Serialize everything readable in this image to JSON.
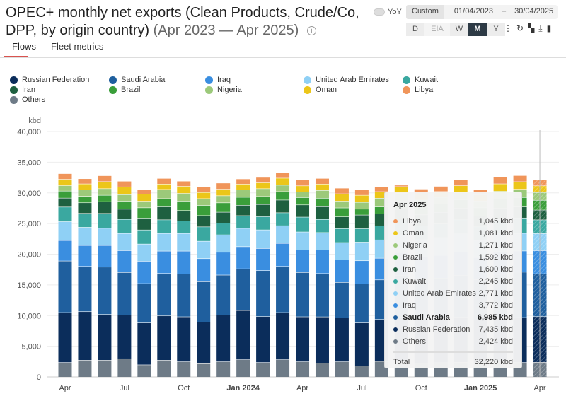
{
  "header": {
    "title": "OPEC+ monthly net exports (Clean Products, Crude/Co, DPP, by origin country)",
    "range": "(Apr 2023 — Apr 2025)",
    "info_icon": "info-icon",
    "yoy_label": "YoY",
    "custom_label": "Custom",
    "date_from": "01/04/2023",
    "date_sep": "–",
    "date_to": "30/04/2025",
    "periods": [
      "D",
      "EIA",
      "W",
      "M",
      "Y"
    ],
    "active_period": "M",
    "tools": [
      "more-icon",
      "refresh-icon",
      "qr-icon",
      "download-icon",
      "bookmark-icon"
    ]
  },
  "tabs": [
    {
      "label": "Flows",
      "active": true
    },
    {
      "label": "Fleet metrics",
      "active": false
    }
  ],
  "chart_data": {
    "type": "bar",
    "stacked": true,
    "ylabel": "kbd",
    "ylim": [
      0,
      40000
    ],
    "yticks": [
      "0",
      "5,000",
      "10,000",
      "15,000",
      "20,000",
      "25,000",
      "30,000",
      "35,000",
      "40,000"
    ],
    "grid": true,
    "legend_position": "top",
    "categories": [
      "Apr 2023",
      "May 2023",
      "Jun 2023",
      "Jul 2023",
      "Aug 2023",
      "Sep 2023",
      "Oct 2023",
      "Nov 2023",
      "Dec 2023",
      "Jan 2024",
      "Feb 2024",
      "Mar 2024",
      "Apr 2024",
      "May 2024",
      "Jun 2024",
      "Jul 2024",
      "Aug 2024",
      "Sep 2024",
      "Oct 2024",
      "Nov 2024",
      "Dec 2024",
      "Jan 2025",
      "Feb 2025",
      "Mar 2025",
      "Apr 2025"
    ],
    "xticks": [
      {
        "label": "Apr",
        "index": 0,
        "bold": false
      },
      {
        "label": "Jul",
        "index": 3,
        "bold": false
      },
      {
        "label": "Oct",
        "index": 6,
        "bold": false
      },
      {
        "label": "Jan 2024",
        "index": 9,
        "bold": true
      },
      {
        "label": "Apr",
        "index": 12,
        "bold": false
      },
      {
        "label": "Jul",
        "index": 15,
        "bold": false
      },
      {
        "label": "Oct",
        "index": 18,
        "bold": false
      },
      {
        "label": "Jan 2025",
        "index": 21,
        "bold": true
      },
      {
        "label": "Apr",
        "index": 24,
        "bold": false
      }
    ],
    "series": [
      {
        "name": "Others",
        "color": "#6e7b87",
        "values": [
          2380,
          2760,
          2760,
          3000,
          2000,
          2760,
          2500,
          2190,
          2500,
          2840,
          2380,
          2840,
          2500,
          2300,
          2500,
          1800,
          2570,
          2500,
          2300,
          2350,
          2400,
          2300,
          2450,
          2380,
          2424
        ]
      },
      {
        "name": "Russian Federation",
        "color": "#0b2d5b",
        "values": [
          8140,
          7910,
          7450,
          7100,
          6830,
          7220,
          7330,
          6760,
          7600,
          8020,
          7490,
          7680,
          7330,
          7520,
          7180,
          7030,
          6830,
          7200,
          7100,
          7200,
          7400,
          7000,
          7300,
          7330,
          7435
        ]
      },
      {
        "name": "Saudi Arabia",
        "color": "#1f5f9e",
        "values": [
          8410,
          7370,
          7720,
          6950,
          6410,
          6910,
          6990,
          6600,
          6530,
          6790,
          7490,
          7520,
          7220,
          7060,
          5760,
          6340,
          6450,
          6900,
          6500,
          6600,
          6800,
          6600,
          7000,
          7400,
          6985
        ]
      },
      {
        "name": "Iraq",
        "color": "#3a8ee0",
        "values": [
          3340,
          3420,
          3530,
          3570,
          3650,
          3650,
          3720,
          3760,
          3720,
          3610,
          3610,
          3760,
          3690,
          3840,
          3650,
          3800,
          3530,
          3700,
          3650,
          3700,
          3800,
          3600,
          3750,
          3450,
          3772
        ]
      },
      {
        "name": "United Arab Emirates",
        "color": "#8fd0f5",
        "values": [
          3070,
          2960,
          2800,
          2800,
          2800,
          2880,
          2880,
          2840,
          2840,
          2990,
          3030,
          2880,
          2920,
          2840,
          2840,
          3030,
          2990,
          2900,
          2850,
          2900,
          2950,
          2800,
          2900,
          2880,
          2771
        ]
      },
      {
        "name": "Kuwait",
        "color": "#3aa8a0",
        "values": [
          2380,
          2270,
          2420,
          2300,
          2300,
          2220,
          2040,
          2340,
          1920,
          2070,
          2150,
          2110,
          2420,
          2150,
          2270,
          2190,
          2300,
          2300,
          2250,
          2250,
          2300,
          2200,
          2300,
          2500,
          2245
        ]
      },
      {
        "name": "Iran",
        "color": "#1e6040",
        "values": [
          1460,
          1730,
          1920,
          1650,
          1920,
          2110,
          1690,
          1840,
          1770,
          1690,
          1990,
          2070,
          1990,
          2070,
          1920,
          2230,
          1920,
          1900,
          1800,
          1850,
          1850,
          1750,
          1800,
          1800,
          1600
        ]
      },
      {
        "name": "Brazil",
        "color": "#3a9e3a",
        "values": [
          1150,
          1040,
          1040,
          1300,
          1690,
          1340,
          1530,
          1650,
          1530,
          1300,
          1300,
          1380,
          1190,
          1380,
          1460,
          960,
          1150,
          1300,
          1300,
          1350,
          1400,
          1350,
          1500,
          1540,
          1592
        ]
      },
      {
        "name": "Nigeria",
        "color": "#9cc97a",
        "values": [
          880,
          1075,
          1075,
          1075,
          1075,
          1500,
          1270,
          1110,
          1150,
          1190,
          1270,
          1040,
          920,
          1270,
          1110,
          1110,
          1420,
          1250,
          1100,
          1100,
          1150,
          1100,
          1300,
          1340,
          1271
        ]
      },
      {
        "name": "Oman",
        "color": "#ecc619",
        "values": [
          1040,
          960,
          1150,
          1270,
          1150,
          880,
          1150,
          1000,
          1075,
          960,
          960,
          1150,
          1000,
          1040,
          1190,
          1150,
          1070,
          1100,
          1000,
          950,
          1150,
          1000,
          1200,
          1230,
          1081
        ]
      },
      {
        "name": "Libya",
        "color": "#f0955a",
        "values": [
          920,
          845,
          960,
          920,
          770,
          920,
          845,
          920,
          1000,
          845,
          885,
          845,
          960,
          920,
          920,
          960,
          845,
          240,
          800,
          850,
          940,
          900,
          1140,
          1000,
          1045
        ]
      }
    ],
    "partial_last_bar": true
  },
  "legend": [
    {
      "name": "Russian Federation",
      "color": "#0b2d5b"
    },
    {
      "name": "Saudi Arabia",
      "color": "#1f5f9e"
    },
    {
      "name": "Iraq",
      "color": "#3a8ee0"
    },
    {
      "name": "United Arab Emirates",
      "color": "#8fd0f5"
    },
    {
      "name": "Kuwait",
      "color": "#3aa8a0"
    },
    {
      "name": "Iran",
      "color": "#1e6040"
    },
    {
      "name": "Brazil",
      "color": "#3a9e3a"
    },
    {
      "name": "Nigeria",
      "color": "#9cc97a"
    },
    {
      "name": "Oman",
      "color": "#ecc619"
    },
    {
      "name": "Libya",
      "color": "#f0955a"
    },
    {
      "name": "Others",
      "color": "#6e7b87"
    }
  ],
  "tooltip": {
    "title": "Apr 2025",
    "rows": [
      {
        "name": "Libya",
        "value": "1,045 kbd",
        "color": "#f0955a",
        "bold": false
      },
      {
        "name": "Oman",
        "value": "1,081 kbd",
        "color": "#ecc619",
        "bold": false
      },
      {
        "name": "Nigeria",
        "value": "1,271 kbd",
        "color": "#9cc97a",
        "bold": false
      },
      {
        "name": "Brazil",
        "value": "1,592 kbd",
        "color": "#3a9e3a",
        "bold": false
      },
      {
        "name": "Iran",
        "value": "1,600 kbd",
        "color": "#1e6040",
        "bold": false
      },
      {
        "name": "Kuwait",
        "value": "2,245 kbd",
        "color": "#3aa8a0",
        "bold": false
      },
      {
        "name": "United Arab Emirates",
        "value": "2,771 kbd",
        "color": "#8fd0f5",
        "bold": false
      },
      {
        "name": "Iraq",
        "value": "3,772 kbd",
        "color": "#3a8ee0",
        "bold": false
      },
      {
        "name": "Saudi Arabia",
        "value": "6,985 kbd",
        "color": "#1f5f9e",
        "bold": true
      },
      {
        "name": "Russian Federation",
        "value": "7,435 kbd",
        "color": "#0b2d5b",
        "bold": false
      },
      {
        "name": "Others",
        "value": "2,424 kbd",
        "color": "#6e7b87",
        "bold": false
      }
    ],
    "total_label": "Total",
    "total_value": "32,220 kbd"
  }
}
